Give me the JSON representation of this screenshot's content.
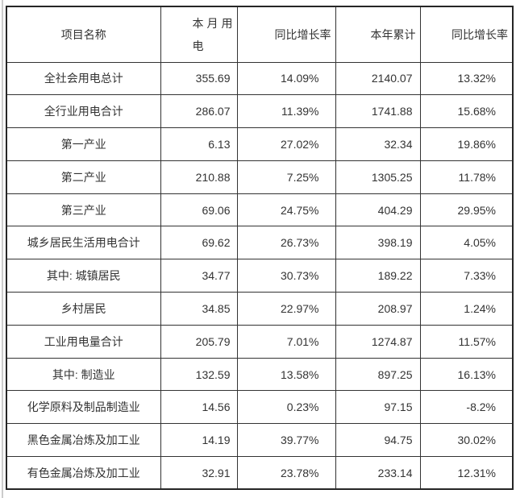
{
  "page": {
    "background_color": "#ffffff",
    "edge_line_color": "#cccccc",
    "table_border_color": "#333333",
    "text_color": "#333333"
  },
  "chart_data": {
    "type": "table",
    "title": "",
    "columns": [
      "项目名称",
      "本月用电",
      "同比增长率",
      "本年累计",
      "同比增长率"
    ],
    "rows": [
      [
        "全社会用电总计",
        "355.69",
        "14.09%",
        "2140.07",
        "13.32%"
      ],
      [
        "全行业用电合计",
        "286.07",
        "11.39%",
        "1741.88",
        "15.68%"
      ],
      [
        "第一产业",
        "6.13",
        "27.02%",
        "32.34",
        "19.86%"
      ],
      [
        "第二产业",
        "210.88",
        "7.25%",
        "1305.25",
        "11.78%"
      ],
      [
        "第三产业",
        "69.06",
        "24.75%",
        "404.29",
        "29.95%"
      ],
      [
        "城乡居民生活用电合计",
        "69.62",
        "26.73%",
        "398.19",
        "4.05%"
      ],
      [
        "其中: 城镇居民",
        "34.77",
        "30.73%",
        "189.22",
        "7.33%"
      ],
      [
        "乡村居民",
        "34.85",
        "22.97%",
        "208.97",
        "1.24%"
      ],
      [
        "工业用电量合计",
        "205.79",
        "7.01%",
        "1274.87",
        "11.57%"
      ],
      [
        "其中: 制造业",
        "132.59",
        "13.58%",
        "897.25",
        "16.13%"
      ],
      [
        "化学原料及制品制造业",
        "14.56",
        "0.23%",
        "97.15",
        "-8.2%"
      ],
      [
        "黑色金属冶炼及加工业",
        "14.19",
        "39.77%",
        "94.75",
        "30.02%"
      ],
      [
        "有色金属冶炼及加工业",
        "32.91",
        "23.78%",
        "233.14",
        "12.31%"
      ]
    ]
  }
}
